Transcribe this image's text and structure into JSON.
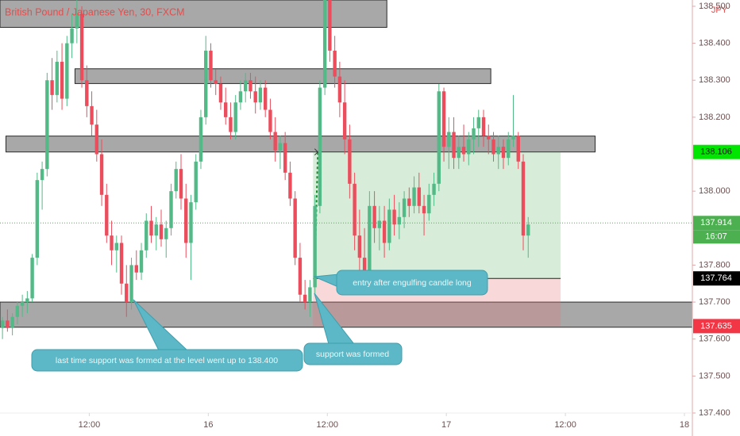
{
  "chart_data": {
    "type": "candlestick",
    "title": "British Pound / Japanese Yen, 30, FXCM",
    "currency": "JPY",
    "up_color": "#53b987",
    "down_color": "#eb4d5c",
    "xlim": [
      3,
      72.8
    ],
    "xticks": [
      {
        "value": 12,
        "label": "12:00"
      },
      {
        "value": 24,
        "label": "16"
      },
      {
        "value": 36,
        "label": "12:00"
      },
      {
        "value": 48,
        "label": "17"
      },
      {
        "value": 60,
        "label": "12:00"
      },
      {
        "value": 72,
        "label": "18"
      }
    ],
    "ylim": [
      137.4,
      138.517
    ],
    "yticks": [
      {
        "value": 137.4,
        "label": "137.400"
      },
      {
        "value": 137.5,
        "label": "137.500"
      },
      {
        "value": 137.6,
        "label": "137.600"
      },
      {
        "value": 137.7,
        "label": "137.700"
      },
      {
        "value": 137.8,
        "label": "137.800"
      },
      {
        "value": 138.0,
        "label": "138.000"
      },
      {
        "value": 138.2,
        "label": "138.200"
      },
      {
        "value": 138.3,
        "label": "138.300"
      },
      {
        "value": 138.4,
        "label": "138.400"
      },
      {
        "value": 138.5,
        "label": "138.500"
      }
    ],
    "x": [
      3.25,
      3.75,
      4.25,
      4.75,
      5.25,
      5.75,
      6.25,
      6.75,
      7.25,
      7.75,
      8.25,
      8.75,
      9.25,
      9.75,
      10.25,
      10.75,
      11.25,
      11.75,
      12.25,
      12.75,
      13.25,
      13.75,
      14.25,
      14.75,
      15.25,
      15.75,
      16.25,
      16.75,
      17.25,
      17.75,
      18.25,
      18.75,
      19.25,
      19.75,
      20.25,
      20.75,
      21.25,
      21.75,
      22.25,
      22.75,
      23.25,
      23.75,
      24.25,
      24.75,
      25.25,
      25.75,
      26.25,
      26.75,
      27.25,
      27.75,
      28.25,
      28.75,
      29.25,
      29.75,
      30.25,
      30.75,
      31.25,
      31.75,
      32.25,
      32.75,
      33.25,
      33.75,
      34.25,
      34.75,
      35.25,
      35.75,
      36.25,
      36.75,
      37.25,
      37.75,
      38.25,
      38.75,
      39.25,
      39.75,
      40.25,
      40.75,
      41.25,
      41.75,
      42.25,
      42.75,
      43.25,
      43.75,
      44.25,
      44.75,
      45.25,
      45.75,
      46.25,
      46.75,
      47.25,
      47.75,
      48.25,
      48.75,
      49.25,
      49.75,
      50.25,
      50.75,
      51.25,
      51.75,
      52.25,
      52.75,
      53.25,
      53.75,
      54.25,
      54.75,
      55.25,
      55.75,
      56.25
    ],
    "ohlc": [
      [
        137.63,
        137.66,
        137.6,
        137.65
      ],
      [
        137.65,
        137.68,
        137.62,
        137.63
      ],
      [
        137.63,
        137.67,
        137.61,
        137.66
      ],
      [
        137.66,
        137.7,
        137.64,
        137.69
      ],
      [
        137.69,
        137.72,
        137.66,
        137.7
      ],
      [
        137.7,
        137.73,
        137.67,
        137.71
      ],
      [
        137.71,
        137.83,
        137.7,
        137.82
      ],
      [
        137.82,
        138.05,
        137.8,
        138.03
      ],
      [
        138.03,
        138.08,
        137.95,
        138.06
      ],
      [
        138.06,
        138.32,
        138.04,
        138.3
      ],
      [
        138.3,
        138.36,
        138.22,
        138.26
      ],
      [
        138.26,
        138.38,
        138.24,
        138.35
      ],
      [
        138.35,
        138.4,
        138.22,
        138.25
      ],
      [
        138.25,
        138.42,
        138.23,
        138.4
      ],
      [
        138.4,
        138.48,
        138.36,
        138.44
      ],
      [
        138.44,
        138.52,
        138.4,
        138.48
      ],
      [
        138.48,
        138.5,
        138.28,
        138.3
      ],
      [
        138.3,
        138.34,
        138.2,
        138.23
      ],
      [
        138.23,
        138.27,
        138.15,
        138.18
      ],
      [
        138.18,
        138.22,
        138.08,
        138.1
      ],
      [
        138.1,
        138.14,
        137.96,
        137.99
      ],
      [
        137.99,
        138.02,
        137.86,
        137.88
      ],
      [
        137.88,
        137.92,
        137.8,
        137.84
      ],
      [
        137.84,
        137.88,
        137.78,
        137.86
      ],
      [
        137.86,
        137.88,
        137.72,
        137.75
      ],
      [
        137.75,
        137.8,
        137.66,
        137.7
      ],
      [
        137.7,
        137.82,
        137.68,
        137.8
      ],
      [
        137.8,
        137.84,
        137.76,
        137.78
      ],
      [
        137.78,
        137.86,
        137.76,
        137.84
      ],
      [
        137.84,
        137.94,
        137.82,
        137.92
      ],
      [
        137.92,
        137.96,
        137.86,
        137.88
      ],
      [
        137.88,
        137.93,
        137.84,
        137.91
      ],
      [
        137.91,
        137.95,
        137.85,
        137.87
      ],
      [
        137.87,
        137.92,
        137.82,
        137.9
      ],
      [
        137.9,
        138.02,
        137.88,
        138.0
      ],
      [
        138.0,
        138.08,
        137.98,
        138.06
      ],
      [
        138.06,
        138.1,
        137.95,
        137.98
      ],
      [
        137.98,
        138.02,
        137.82,
        137.86
      ],
      [
        137.86,
        137.99,
        137.76,
        137.97
      ],
      [
        137.97,
        138.1,
        137.95,
        138.08
      ],
      [
        138.08,
        138.22,
        138.06,
        138.2
      ],
      [
        138.2,
        138.42,
        138.18,
        138.38
      ],
      [
        138.38,
        138.4,
        138.28,
        138.3
      ],
      [
        138.3,
        138.33,
        138.26,
        138.29
      ],
      [
        138.29,
        138.31,
        138.22,
        138.24
      ],
      [
        138.24,
        138.28,
        138.18,
        138.2
      ],
      [
        138.2,
        138.24,
        138.14,
        138.16
      ],
      [
        138.16,
        138.26,
        138.14,
        138.24
      ],
      [
        138.24,
        138.3,
        138.22,
        138.27
      ],
      [
        138.27,
        138.32,
        138.24,
        138.3
      ],
      [
        138.3,
        138.32,
        138.25,
        138.27
      ],
      [
        138.27,
        138.31,
        138.21,
        138.24
      ],
      [
        138.24,
        138.3,
        138.22,
        138.28
      ],
      [
        138.28,
        138.3,
        138.2,
        138.22
      ],
      [
        138.22,
        138.25,
        138.14,
        138.16
      ],
      [
        138.16,
        138.2,
        138.08,
        138.11
      ],
      [
        138.11,
        138.15,
        138.06,
        138.13
      ],
      [
        138.13,
        138.16,
        138.03,
        138.05
      ],
      [
        138.05,
        138.08,
        137.96,
        137.98
      ],
      [
        137.98,
        138.0,
        137.8,
        137.82
      ],
      [
        137.82,
        137.86,
        137.7,
        137.72
      ],
      [
        137.72,
        137.76,
        137.68,
        137.7
      ],
      [
        137.7,
        137.76,
        137.66,
        137.74
      ],
      [
        137.74,
        137.99,
        137.72,
        137.96
      ],
      [
        137.96,
        138.3,
        137.94,
        138.28
      ],
      [
        138.28,
        138.56,
        138.26,
        138.52
      ],
      [
        138.52,
        138.55,
        138.35,
        138.38
      ],
      [
        138.38,
        138.42,
        138.28,
        138.31
      ],
      [
        138.31,
        138.35,
        138.2,
        138.24
      ],
      [
        138.24,
        138.3,
        138.1,
        138.14
      ],
      [
        138.14,
        138.18,
        137.98,
        138.02
      ],
      [
        138.02,
        138.05,
        137.84,
        137.88
      ],
      [
        137.88,
        137.95,
        137.76,
        137.82
      ],
      [
        137.82,
        137.9,
        137.72,
        137.78
      ],
      [
        137.78,
        138.0,
        137.76,
        137.96
      ],
      [
        137.96,
        138.0,
        137.86,
        137.9
      ],
      [
        137.9,
        137.96,
        137.84,
        137.92
      ],
      [
        137.92,
        137.96,
        137.82,
        137.86
      ],
      [
        137.86,
        137.98,
        137.84,
        137.95
      ],
      [
        137.95,
        137.99,
        137.88,
        137.91
      ],
      [
        137.91,
        137.97,
        137.87,
        137.93
      ],
      [
        137.93,
        138.0,
        137.9,
        137.98
      ],
      [
        137.98,
        138.01,
        137.93,
        137.96
      ],
      [
        137.96,
        138.04,
        137.94,
        138.01
      ],
      [
        138.01,
        138.05,
        137.94,
        137.96
      ],
      [
        137.96,
        137.99,
        137.88,
        137.94
      ],
      [
        137.94,
        138.02,
        137.92,
        137.99
      ],
      [
        137.99,
        138.05,
        137.96,
        138.02
      ],
      [
        138.02,
        138.29,
        138.0,
        138.27
      ],
      [
        138.27,
        138.28,
        138.08,
        138.12
      ],
      [
        138.12,
        138.2,
        138.06,
        138.16
      ],
      [
        138.16,
        138.2,
        138.06,
        138.09
      ],
      [
        138.09,
        138.15,
        138.06,
        138.12
      ],
      [
        138.12,
        138.18,
        138.08,
        138.1
      ],
      [
        138.1,
        138.16,
        138.07,
        138.14
      ],
      [
        138.14,
        138.2,
        138.1,
        138.17
      ],
      [
        138.17,
        138.22,
        138.12,
        138.2
      ],
      [
        138.2,
        138.22,
        138.12,
        138.15
      ],
      [
        138.15,
        138.18,
        138.1,
        138.14
      ],
      [
        138.14,
        138.16,
        138.08,
        138.1
      ],
      [
        138.1,
        138.15,
        138.06,
        138.12
      ],
      [
        138.12,
        138.14,
        138.06,
        138.09
      ],
      [
        138.09,
        138.16,
        138.07,
        138.14
      ],
      [
        138.14,
        138.26,
        138.12,
        138.15
      ],
      [
        138.15,
        138.16,
        138.06,
        138.08
      ],
      [
        138.08,
        138.1,
        137.84,
        137.88
      ],
      [
        137.88,
        137.93,
        137.82,
        137.91
      ]
    ],
    "zones": [
      {
        "x": [
          3,
          42
        ],
        "y": [
          138.443,
          138.517
        ]
      },
      {
        "x": [
          10.56,
          52.48
        ],
        "y": [
          138.291,
          138.331
        ]
      },
      {
        "x": [
          3.6,
          63
        ],
        "y": [
          138.106,
          138.149
        ]
      },
      {
        "x": [
          3,
          72.8
        ],
        "y": [
          137.632,
          137.7
        ]
      }
    ],
    "position": {
      "x": [
        34.56,
        59.52
      ],
      "entry": 137.764,
      "target": 138.106,
      "stop": 137.635
    },
    "last_price": 137.914,
    "countdown": "16:07",
    "annotations": [
      "entry after engulfing candle long",
      "last time support was formed at the level went up to 138.400",
      "support was formed"
    ]
  }
}
